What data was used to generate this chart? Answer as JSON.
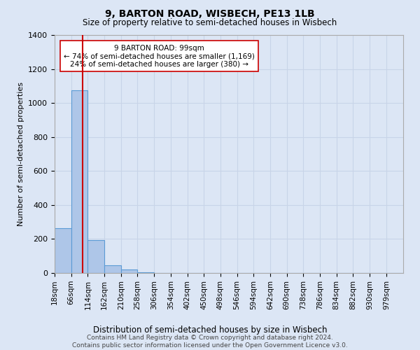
{
  "title": "9, BARTON ROAD, WISBECH, PE13 1LB",
  "subtitle": "Size of property relative to semi-detached houses in Wisbech",
  "xlabel": "Distribution of semi-detached houses by size in Wisbech",
  "ylabel": "Number of semi-detached properties",
  "footer_line1": "Contains HM Land Registry data © Crown copyright and database right 2024.",
  "footer_line2": "Contains public sector information licensed under the Open Government Licence v3.0.",
  "property_size": 99,
  "property_label": "9 BARTON ROAD: 99sqm",
  "annotation_line1": "← 74% of semi-detached houses are smaller (1,169)",
  "annotation_line2": "24% of semi-detached houses are larger (380) →",
  "bar_edges": [
    18,
    66,
    114,
    162,
    210,
    258,
    306,
    354,
    402,
    450,
    498,
    546,
    594,
    642,
    690,
    738,
    786,
    834,
    882,
    930,
    979,
    1027
  ],
  "bar_heights": [
    265,
    1075,
    195,
    45,
    20,
    5,
    2,
    1,
    1,
    0,
    0,
    0,
    0,
    0,
    0,
    0,
    0,
    0,
    0,
    0,
    0
  ],
  "tick_labels": [
    "18sqm",
    "66sqm",
    "114sqm",
    "162sqm",
    "210sqm",
    "258sqm",
    "306sqm",
    "354sqm",
    "402sqm",
    "450sqm",
    "498sqm",
    "546sqm",
    "594sqm",
    "642sqm",
    "690sqm",
    "738sqm",
    "786sqm",
    "834sqm",
    "882sqm",
    "930sqm",
    "979sqm"
  ],
  "bar_color": "#aec6e8",
  "bar_edge_color": "#5b9bd5",
  "red_line_color": "#cc0000",
  "annotation_box_color": "#ffffff",
  "annotation_box_edge": "#cc0000",
  "grid_color": "#c8d4e8",
  "background_color": "#dce6f5",
  "ylim": [
    0,
    1400
  ],
  "yticks": [
    0,
    200,
    400,
    600,
    800,
    1000,
    1200,
    1400
  ]
}
